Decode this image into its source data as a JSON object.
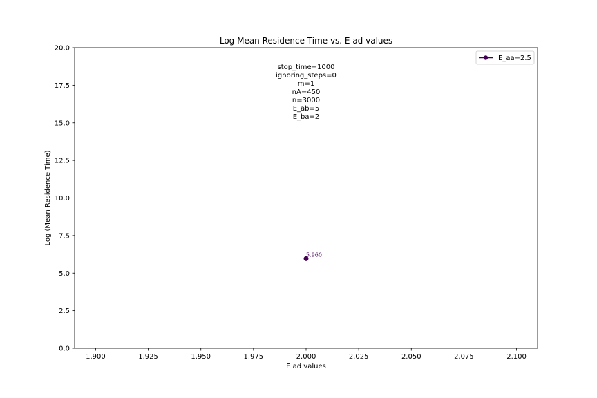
{
  "chart_data": {
    "type": "line",
    "title": "Log Mean Residence Time vs. E ad values",
    "xlabel": "E ad values",
    "ylabel": "Log (Mean Residence Time)",
    "xlim": [
      1.89,
      2.11
    ],
    "ylim": [
      0,
      20
    ],
    "x_ticks": [
      "1.900",
      "1.925",
      "1.950",
      "1.975",
      "2.000",
      "2.025",
      "2.050",
      "2.075",
      "2.100"
    ],
    "x_tick_values": [
      1.9,
      1.925,
      1.95,
      1.975,
      2.0,
      2.025,
      2.05,
      2.075,
      2.1
    ],
    "y_ticks": [
      "0.0",
      "2.5",
      "5.0",
      "7.5",
      "10.0",
      "12.5",
      "15.0",
      "17.5",
      "20.0"
    ],
    "y_tick_values": [
      0,
      2.5,
      5,
      7.5,
      10,
      12.5,
      15,
      17.5,
      20
    ],
    "grid": false,
    "legend_position": "top-right",
    "series": [
      {
        "name": "E_aa=2.5",
        "color": "#440154",
        "marker": "circle",
        "points": [
          {
            "x": 2.0,
            "y": 5.96,
            "label": "5.960"
          }
        ]
      }
    ],
    "annotation_lines": [
      "stop_time=1000",
      "ignoring_steps=0",
      "m=1",
      "nA=450",
      "n=3000",
      "E_ab=5",
      "E_ba=2"
    ]
  }
}
